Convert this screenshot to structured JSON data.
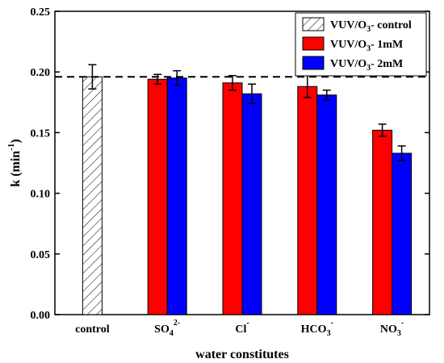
{
  "chart_data": {
    "type": "bar",
    "title": "",
    "xlabel": "water constitutes",
    "ylabel": "k (min",
    "ylabel_sup": "-1",
    "ylabel_close": ")",
    "ylim": [
      0,
      0.25
    ],
    "yticks": [
      "0.00",
      "0.05",
      "0.10",
      "0.15",
      "0.20",
      "0.25"
    ],
    "reference_line": 0.196,
    "categories": [
      {
        "label": "control",
        "sub": "",
        "sup": ""
      },
      {
        "label": "SO",
        "sub": "4",
        "sup": "2-"
      },
      {
        "label": "Cl",
        "sub": "",
        "sup": "-"
      },
      {
        "label": "HCO",
        "sub": "3",
        "sup": "-"
      },
      {
        "label": "NO",
        "sub": "3",
        "sup": "-"
      }
    ],
    "series": [
      {
        "name": "VUV/O",
        "name_sub": "3",
        "name_rest": "- control",
        "color": "#ffffff",
        "pattern": "hatch",
        "values": [
          0.196,
          null,
          null,
          null,
          null
        ],
        "errors": [
          0.01,
          null,
          null,
          null,
          null
        ]
      },
      {
        "name": "VUV/O",
        "name_sub": "3",
        "name_rest": "- 1mM",
        "color": "#ff0000",
        "values": [
          null,
          0.194,
          0.191,
          0.188,
          0.152
        ],
        "errors": [
          null,
          0.004,
          0.006,
          0.009,
          0.005
        ]
      },
      {
        "name": "VUV/O",
        "name_sub": "3",
        "name_rest": "- 2mM",
        "color": "#0000ff",
        "values": [
          null,
          0.195,
          0.182,
          0.181,
          0.133
        ],
        "errors": [
          null,
          0.006,
          0.008,
          0.004,
          0.006
        ]
      }
    ],
    "legend_position": "top-right",
    "grid": false
  }
}
